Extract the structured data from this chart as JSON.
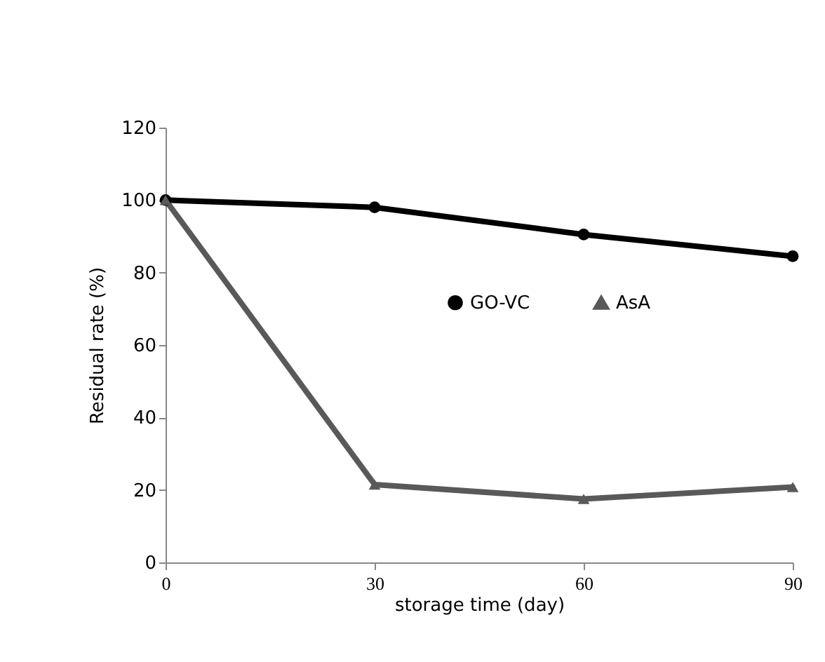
{
  "chart_data": {
    "type": "line",
    "x": [
      0,
      30,
      60,
      90
    ],
    "xlabel": "storage time (day)",
    "ylabel": "Residual rate (%)",
    "xlim": [
      0,
      90
    ],
    "xticks": [
      0,
      30,
      60,
      90
    ],
    "ylim": [
      0,
      120
    ],
    "yticks": [
      0,
      20,
      40,
      60,
      80,
      100,
      120
    ],
    "series": [
      {
        "name": "GO-VC",
        "color": "#000000",
        "marker": "circle",
        "values": [
          100,
          98,
          90.5,
          84.5
        ]
      },
      {
        "name": "AsA",
        "color": "#595959",
        "marker": "triangle",
        "values": [
          100,
          21.5,
          17.5,
          20.8
        ]
      }
    ],
    "grid": false,
    "legend": "right",
    "line_style": "solid"
  }
}
